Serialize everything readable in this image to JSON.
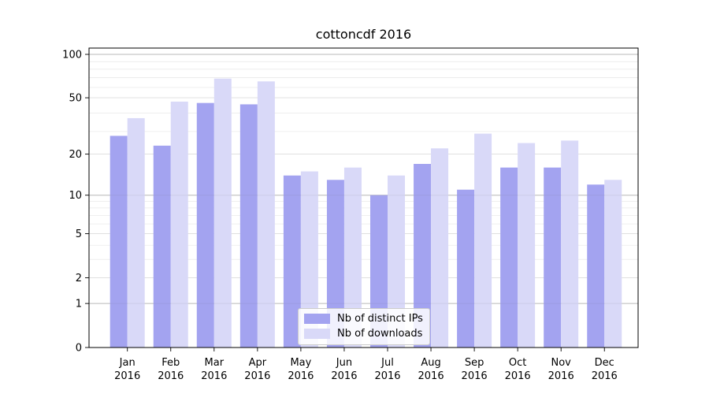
{
  "figure": {
    "title": "cottoncdf 2016"
  },
  "chart_data": {
    "type": "bar",
    "title": "cottoncdf 2016",
    "categories": [
      "Jan",
      "Feb",
      "Mar",
      "Apr",
      "May",
      "Jun",
      "Jul",
      "Aug",
      "Sep",
      "Oct",
      "Nov",
      "Dec"
    ],
    "category_year": "2016",
    "series": [
      {
        "name": "Nb of distinct IPs",
        "color": "#a3a3f0",
        "values": [
          27,
          23,
          46,
          45,
          14,
          13,
          10,
          17,
          11,
          16,
          16,
          12
        ]
      },
      {
        "name": "Nb of downloads",
        "color": "#d9d9f8",
        "values": [
          36,
          47,
          68,
          65,
          15,
          16,
          14,
          22,
          28,
          24,
          25,
          13
        ]
      }
    ],
    "ylabel": "",
    "xlabel": "",
    "yscale": "log1p",
    "ylim": [
      0,
      111
    ],
    "yticks": [
      0,
      1,
      2,
      5,
      10,
      20,
      50,
      100
    ],
    "ytick_labels": [
      "0",
      "1",
      "2",
      "5",
      "10",
      "20",
      "50",
      "100"
    ],
    "grid": true,
    "major_gridlines": [
      1,
      10,
      100
    ],
    "mid_gridlines": [
      2,
      5,
      20,
      50
    ],
    "minor_gridlines": [
      3,
      4,
      6,
      7,
      8,
      9,
      29,
      39,
      59,
      69,
      79,
      89
    ],
    "legend_position": "lower center",
    "colors": {
      "bar_distinct_ips": "#a3a3f0",
      "bar_downloads": "#d9d9f8",
      "grid_major": "#c3c3c3",
      "grid_mid": "#dcdcdc",
      "grid_minor": "#eaeaea",
      "spine": "#000000",
      "text": "#000000",
      "background": "#ffffff"
    }
  }
}
